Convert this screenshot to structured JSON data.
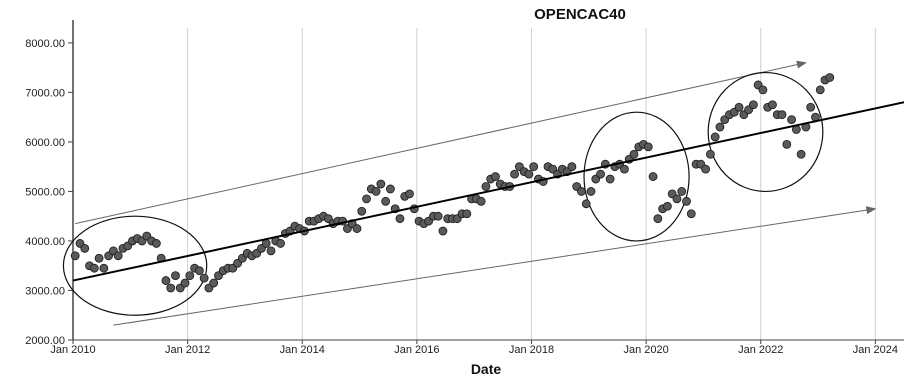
{
  "chart_data": {
    "type": "scatter",
    "title": "OPENCAC40",
    "xlabel": "Date",
    "ylabel": "",
    "x_axis": "date",
    "xlim": [
      "2010-01-01",
      "2024-07-01"
    ],
    "ylim": [
      2000,
      8300
    ],
    "grid": "vertical",
    "yticks": [
      {
        "value": 2000,
        "label": "2000.00"
      },
      {
        "value": 3000,
        "label": "3000.00"
      },
      {
        "value": 4000,
        "label": "4000.00"
      },
      {
        "value": 5000,
        "label": "5000.00"
      },
      {
        "value": 6000,
        "label": "6000.00"
      },
      {
        "value": 7000,
        "label": "7000.00"
      },
      {
        "value": 8000,
        "label": "8000.00"
      }
    ],
    "xticks": [
      {
        "value": "2010-01-01",
        "label": "Jan 2010"
      },
      {
        "value": "2012-01-01",
        "label": "Jan 2012"
      },
      {
        "value": "2014-01-01",
        "label": "Jan 2014"
      },
      {
        "value": "2016-01-01",
        "label": "Jan 2016"
      },
      {
        "value": "2018-01-01",
        "label": "Jan 2018"
      },
      {
        "value": "2020-01-01",
        "label": "Jan 2020"
      },
      {
        "value": "2022-01-01",
        "label": "Jan 2022"
      },
      {
        "value": "2024-01-01",
        "label": "Jan 2024"
      }
    ],
    "series": [
      {
        "marker_color": "#5a5a5a",
        "points": [
          [
            "2010-01-15",
            3700
          ],
          [
            "2010-02-15",
            3950
          ],
          [
            "2010-03-15",
            3850
          ],
          [
            "2010-04-15",
            3500
          ],
          [
            "2010-05-15",
            3450
          ],
          [
            "2010-06-15",
            3650
          ],
          [
            "2010-07-15",
            3450
          ],
          [
            "2010-08-15",
            3700
          ],
          [
            "2010-09-15",
            3800
          ],
          [
            "2010-10-15",
            3700
          ],
          [
            "2010-11-15",
            3850
          ],
          [
            "2010-12-15",
            3900
          ],
          [
            "2011-01-15",
            4000
          ],
          [
            "2011-02-15",
            4050
          ],
          [
            "2011-03-15",
            4000
          ],
          [
            "2011-04-15",
            4100
          ],
          [
            "2011-05-15",
            4000
          ],
          [
            "2011-06-15",
            3950
          ],
          [
            "2011-07-15",
            3650
          ],
          [
            "2011-08-15",
            3200
          ],
          [
            "2011-09-15",
            3050
          ],
          [
            "2011-10-15",
            3300
          ],
          [
            "2011-11-15",
            3050
          ],
          [
            "2011-12-15",
            3150
          ],
          [
            "2012-01-15",
            3300
          ],
          [
            "2012-02-15",
            3450
          ],
          [
            "2012-03-15",
            3400
          ],
          [
            "2012-04-15",
            3250
          ],
          [
            "2012-05-15",
            3050
          ],
          [
            "2012-06-15",
            3150
          ],
          [
            "2012-07-15",
            3300
          ],
          [
            "2012-08-15",
            3400
          ],
          [
            "2012-09-15",
            3450
          ],
          [
            "2012-10-15",
            3450
          ],
          [
            "2012-11-15",
            3550
          ],
          [
            "2012-12-15",
            3650
          ],
          [
            "2013-01-15",
            3750
          ],
          [
            "2013-02-15",
            3700
          ],
          [
            "2013-03-15",
            3750
          ],
          [
            "2013-04-15",
            3850
          ],
          [
            "2013-05-15",
            3950
          ],
          [
            "2013-06-15",
            3800
          ],
          [
            "2013-07-15",
            4000
          ],
          [
            "2013-08-15",
            3950
          ],
          [
            "2013-09-15",
            4150
          ],
          [
            "2013-10-15",
            4200
          ],
          [
            "2013-11-15",
            4300
          ],
          [
            "2013-12-15",
            4250
          ],
          [
            "2014-01-15",
            4200
          ],
          [
            "2014-02-15",
            4400
          ],
          [
            "2014-03-15",
            4400
          ],
          [
            "2014-04-15",
            4450
          ],
          [
            "2014-05-15",
            4500
          ],
          [
            "2014-06-15",
            4450
          ],
          [
            "2014-07-15",
            4350
          ],
          [
            "2014-08-15",
            4400
          ],
          [
            "2014-09-15",
            4400
          ],
          [
            "2014-10-15",
            4250
          ],
          [
            "2014-11-15",
            4350
          ],
          [
            "2014-12-15",
            4250
          ],
          [
            "2015-01-15",
            4600
          ],
          [
            "2015-02-15",
            4850
          ],
          [
            "2015-03-15",
            5050
          ],
          [
            "2015-04-15",
            5000
          ],
          [
            "2015-05-15",
            5150
          ],
          [
            "2015-06-15",
            4800
          ],
          [
            "2015-07-15",
            5050
          ],
          [
            "2015-08-15",
            4650
          ],
          [
            "2015-09-15",
            4450
          ],
          [
            "2015-10-15",
            4900
          ],
          [
            "2015-11-15",
            4950
          ],
          [
            "2015-12-15",
            4650
          ],
          [
            "2016-01-15",
            4400
          ],
          [
            "2016-02-15",
            4350
          ],
          [
            "2016-03-15",
            4400
          ],
          [
            "2016-04-15",
            4500
          ],
          [
            "2016-05-15",
            4500
          ],
          [
            "2016-06-15",
            4200
          ],
          [
            "2016-07-15",
            4450
          ],
          [
            "2016-08-15",
            4450
          ],
          [
            "2016-09-15",
            4450
          ],
          [
            "2016-10-15",
            4550
          ],
          [
            "2016-11-15",
            4550
          ],
          [
            "2016-12-15",
            4850
          ],
          [
            "2017-01-15",
            4850
          ],
          [
            "2017-02-15",
            4800
          ],
          [
            "2017-03-15",
            5100
          ],
          [
            "2017-04-15",
            5250
          ],
          [
            "2017-05-15",
            5300
          ],
          [
            "2017-06-15",
            5150
          ],
          [
            "2017-07-15",
            5100
          ],
          [
            "2017-08-15",
            5100
          ],
          [
            "2017-09-15",
            5350
          ],
          [
            "2017-10-15",
            5500
          ],
          [
            "2017-11-15",
            5400
          ],
          [
            "2017-12-15",
            5350
          ],
          [
            "2018-01-15",
            5500
          ],
          [
            "2018-02-15",
            5250
          ],
          [
            "2018-03-15",
            5200
          ],
          [
            "2018-04-15",
            5500
          ],
          [
            "2018-05-15",
            5450
          ],
          [
            "2018-06-15",
            5350
          ],
          [
            "2018-07-15",
            5450
          ],
          [
            "2018-08-15",
            5400
          ],
          [
            "2018-09-15",
            5500
          ],
          [
            "2018-10-15",
            5100
          ],
          [
            "2018-11-15",
            5000
          ],
          [
            "2018-12-15",
            4750
          ],
          [
            "2019-01-15",
            5000
          ],
          [
            "2019-02-15",
            5250
          ],
          [
            "2019-03-15",
            5350
          ],
          [
            "2019-04-15",
            5550
          ],
          [
            "2019-05-15",
            5250
          ],
          [
            "2019-06-15",
            5500
          ],
          [
            "2019-07-15",
            5550
          ],
          [
            "2019-08-15",
            5450
          ],
          [
            "2019-09-15",
            5650
          ],
          [
            "2019-10-15",
            5750
          ],
          [
            "2019-11-15",
            5900
          ],
          [
            "2019-12-15",
            5950
          ],
          [
            "2020-01-15",
            5900
          ],
          [
            "2020-02-15",
            5300
          ],
          [
            "2020-03-15",
            4450
          ],
          [
            "2020-04-15",
            4650
          ],
          [
            "2020-05-15",
            4700
          ],
          [
            "2020-06-15",
            4950
          ],
          [
            "2020-07-15",
            4850
          ],
          [
            "2020-08-15",
            5000
          ],
          [
            "2020-09-15",
            4800
          ],
          [
            "2020-10-15",
            4550
          ],
          [
            "2020-11-15",
            5550
          ],
          [
            "2020-12-15",
            5550
          ],
          [
            "2021-01-15",
            5450
          ],
          [
            "2021-02-15",
            5750
          ],
          [
            "2021-03-15",
            6100
          ],
          [
            "2021-04-15",
            6300
          ],
          [
            "2021-05-15",
            6450
          ],
          [
            "2021-06-15",
            6550
          ],
          [
            "2021-07-15",
            6600
          ],
          [
            "2021-08-15",
            6700
          ],
          [
            "2021-09-15",
            6550
          ],
          [
            "2021-10-15",
            6650
          ],
          [
            "2021-11-15",
            6750
          ],
          [
            "2021-12-15",
            7150
          ],
          [
            "2022-01-15",
            7050
          ],
          [
            "2022-02-15",
            6700
          ],
          [
            "2022-03-15",
            6750
          ],
          [
            "2022-04-15",
            6550
          ],
          [
            "2022-05-15",
            6550
          ],
          [
            "2022-06-15",
            5950
          ],
          [
            "2022-07-15",
            6450
          ],
          [
            "2022-08-15",
            6250
          ],
          [
            "2022-09-15",
            5750
          ],
          [
            "2022-10-15",
            6300
          ],
          [
            "2022-11-15",
            6700
          ],
          [
            "2022-12-15",
            6500
          ],
          [
            "2023-01-15",
            7050
          ],
          [
            "2023-02-15",
            7250
          ],
          [
            "2023-03-15",
            7300
          ]
        ]
      }
    ],
    "trend_line": {
      "from": [
        "2010-01-01",
        3200
      ],
      "to": [
        "2024-07-01",
        6800
      ],
      "color": "#000000"
    },
    "annotation_arrows": [
      {
        "from": [
          "2010-01-15",
          4350
        ],
        "to": [
          "2022-10-15",
          7600
        ],
        "color": "#666666"
      },
      {
        "from": [
          "2010-09-15",
          2300
        ],
        "to": [
          "2024-01-01",
          4650
        ],
        "color": "#666666"
      }
    ],
    "annotation_ellipses": [
      {
        "center": [
          "2011-02-01",
          3500
        ],
        "radius_months": 15,
        "radius_value": 1000
      },
      {
        "center": [
          "2019-11-01",
          5300
        ],
        "radius_months": 11,
        "radius_value": 1300
      },
      {
        "center": [
          "2022-02-01",
          6200
        ],
        "radius_months": 12,
        "radius_value": 1200
      }
    ]
  }
}
